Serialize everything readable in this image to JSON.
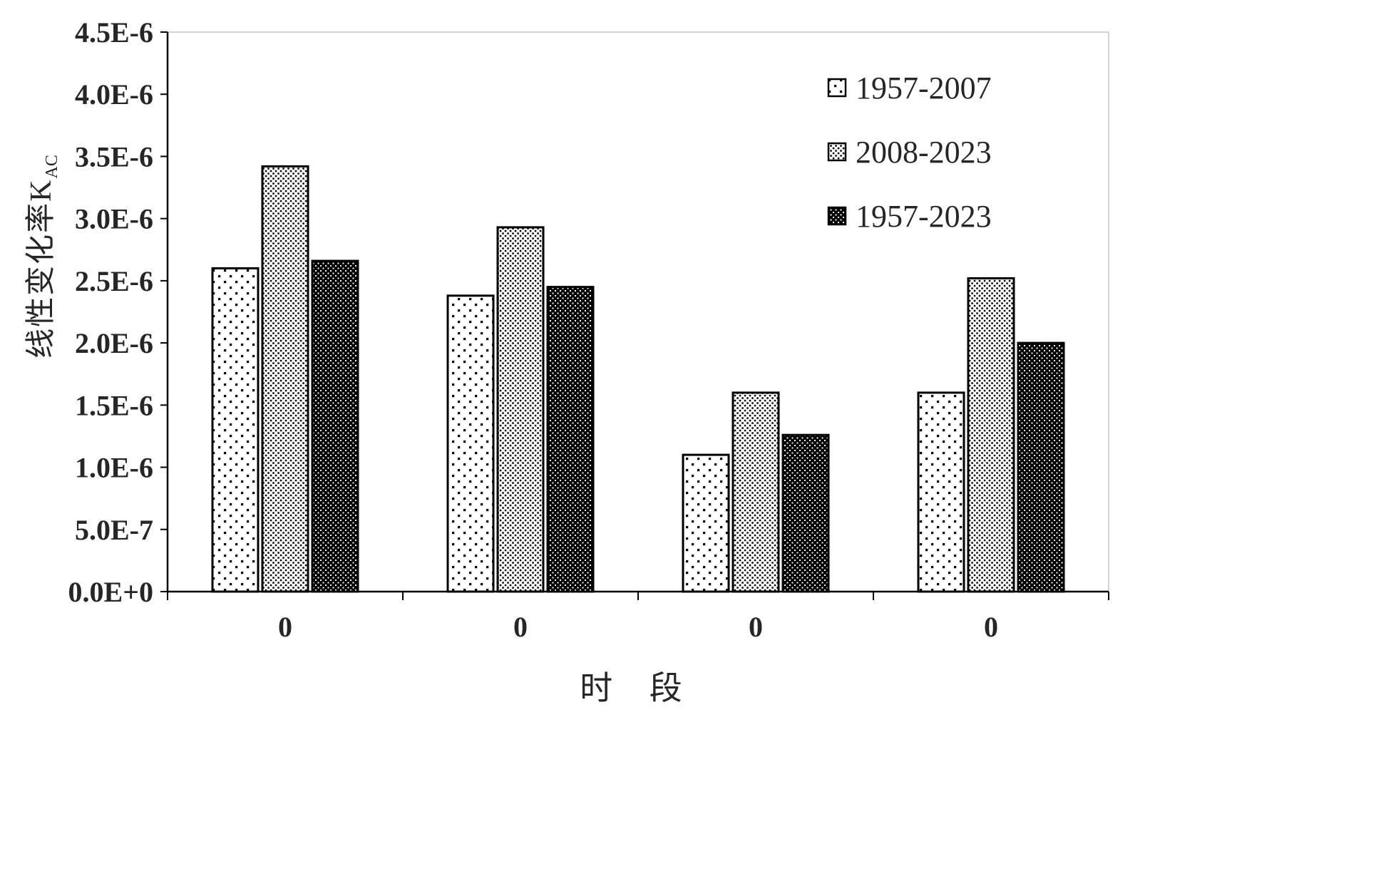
{
  "chart_data": {
    "type": "bar",
    "title": "",
    "xlabel": "时 段",
    "ylabel": "线性变化率K",
    "ylabel_subscript": "AC",
    "categories": [
      "0",
      "0",
      "0",
      "0"
    ],
    "series": [
      {
        "name": "1957-2007",
        "pattern": "sparse-dots",
        "values": [
          2.6e-06,
          2.38e-06,
          1.1e-06,
          1.6e-06
        ]
      },
      {
        "name": "2008-2023",
        "pattern": "fine-dots",
        "values": [
          3.42e-06,
          2.93e-06,
          1.6e-06,
          2.52e-06
        ]
      },
      {
        "name": "1957-2023",
        "pattern": "dense-dots",
        "values": [
          2.66e-06,
          2.45e-06,
          1.26e-06,
          2e-06
        ]
      }
    ],
    "ylim": [
      0,
      4.5e-06
    ],
    "ytick_step": 5e-07,
    "ytick_labels": [
      "0.0E+0",
      "5.0E-7",
      "1.0E-6",
      "1.5E-6",
      "2.0E-6",
      "2.5E-6",
      "3.0E-6",
      "3.5E-6",
      "4.0E-6",
      "4.5E-6"
    ],
    "grid": false,
    "legend_position": "top-right-inside",
    "colors": {
      "bar_outline": "#000000",
      "axis": "#000000",
      "plot_border": "#c6c6c6",
      "text": "#262626"
    }
  }
}
